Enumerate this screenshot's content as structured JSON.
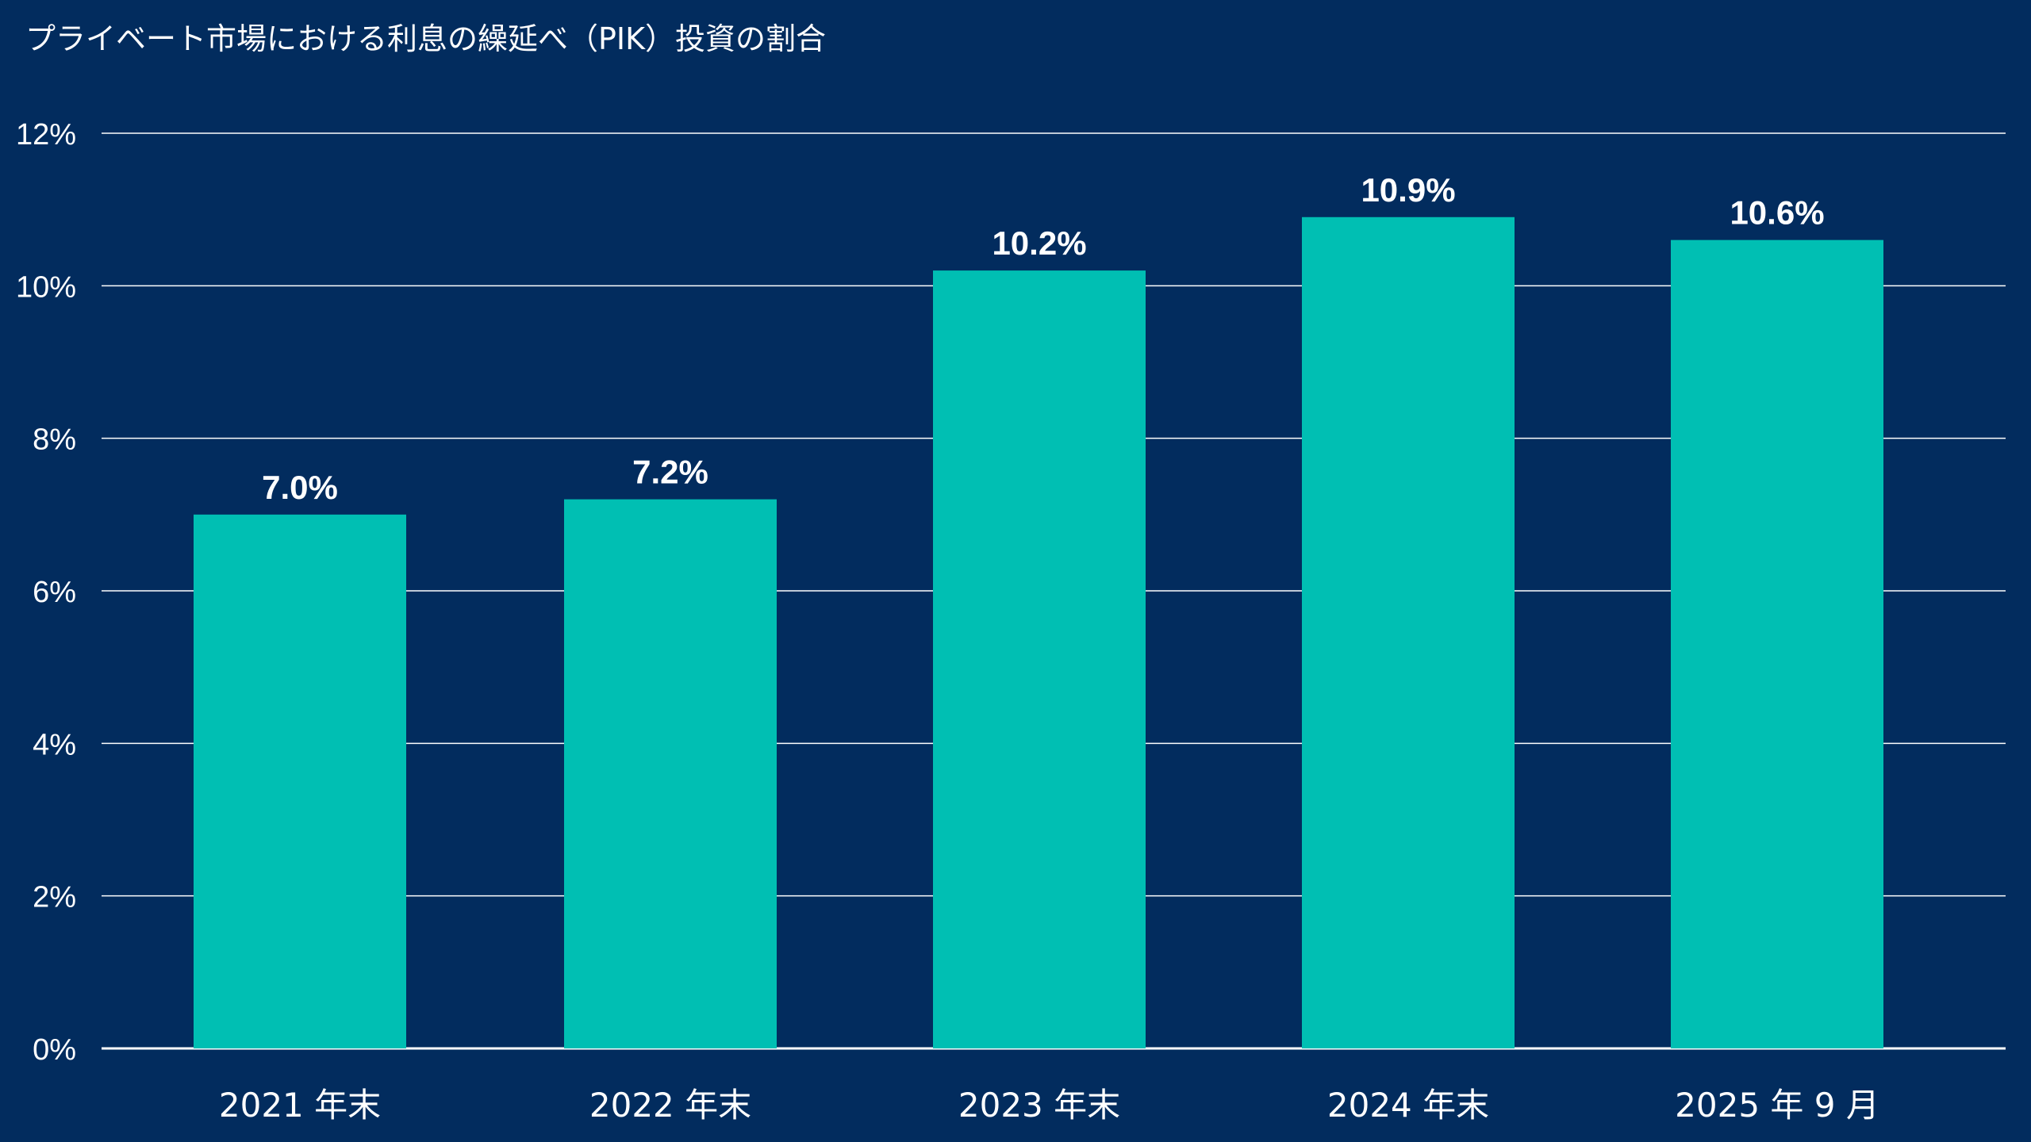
{
  "chart_data": {
    "type": "bar",
    "title": "プライベート市場における利息の繰延べ（PIK）投資の割合",
    "categories": [
      "2021 年末",
      "2022 年末",
      "2023 年末",
      "2024 年末",
      "2025 年 9 月"
    ],
    "values": [
      7.0,
      7.2,
      10.2,
      10.9,
      10.6
    ],
    "data_labels": [
      "7.0%",
      "7.2%",
      "10.2%",
      "10.9%",
      "10.6%"
    ],
    "ylim": [
      0,
      12
    ],
    "yticks": [
      0,
      2,
      4,
      6,
      8,
      10,
      12
    ],
    "ytick_labels": [
      "0%",
      "2%",
      "4%",
      "6%",
      "8%",
      "10%",
      "12%"
    ],
    "xlabel": "",
    "ylabel": "",
    "grid": true,
    "legend": "none"
  },
  "colors": {
    "background": "#022c5e",
    "bar": "#00bfb3",
    "text": "#ffffff",
    "grid": "#ffffff"
  }
}
